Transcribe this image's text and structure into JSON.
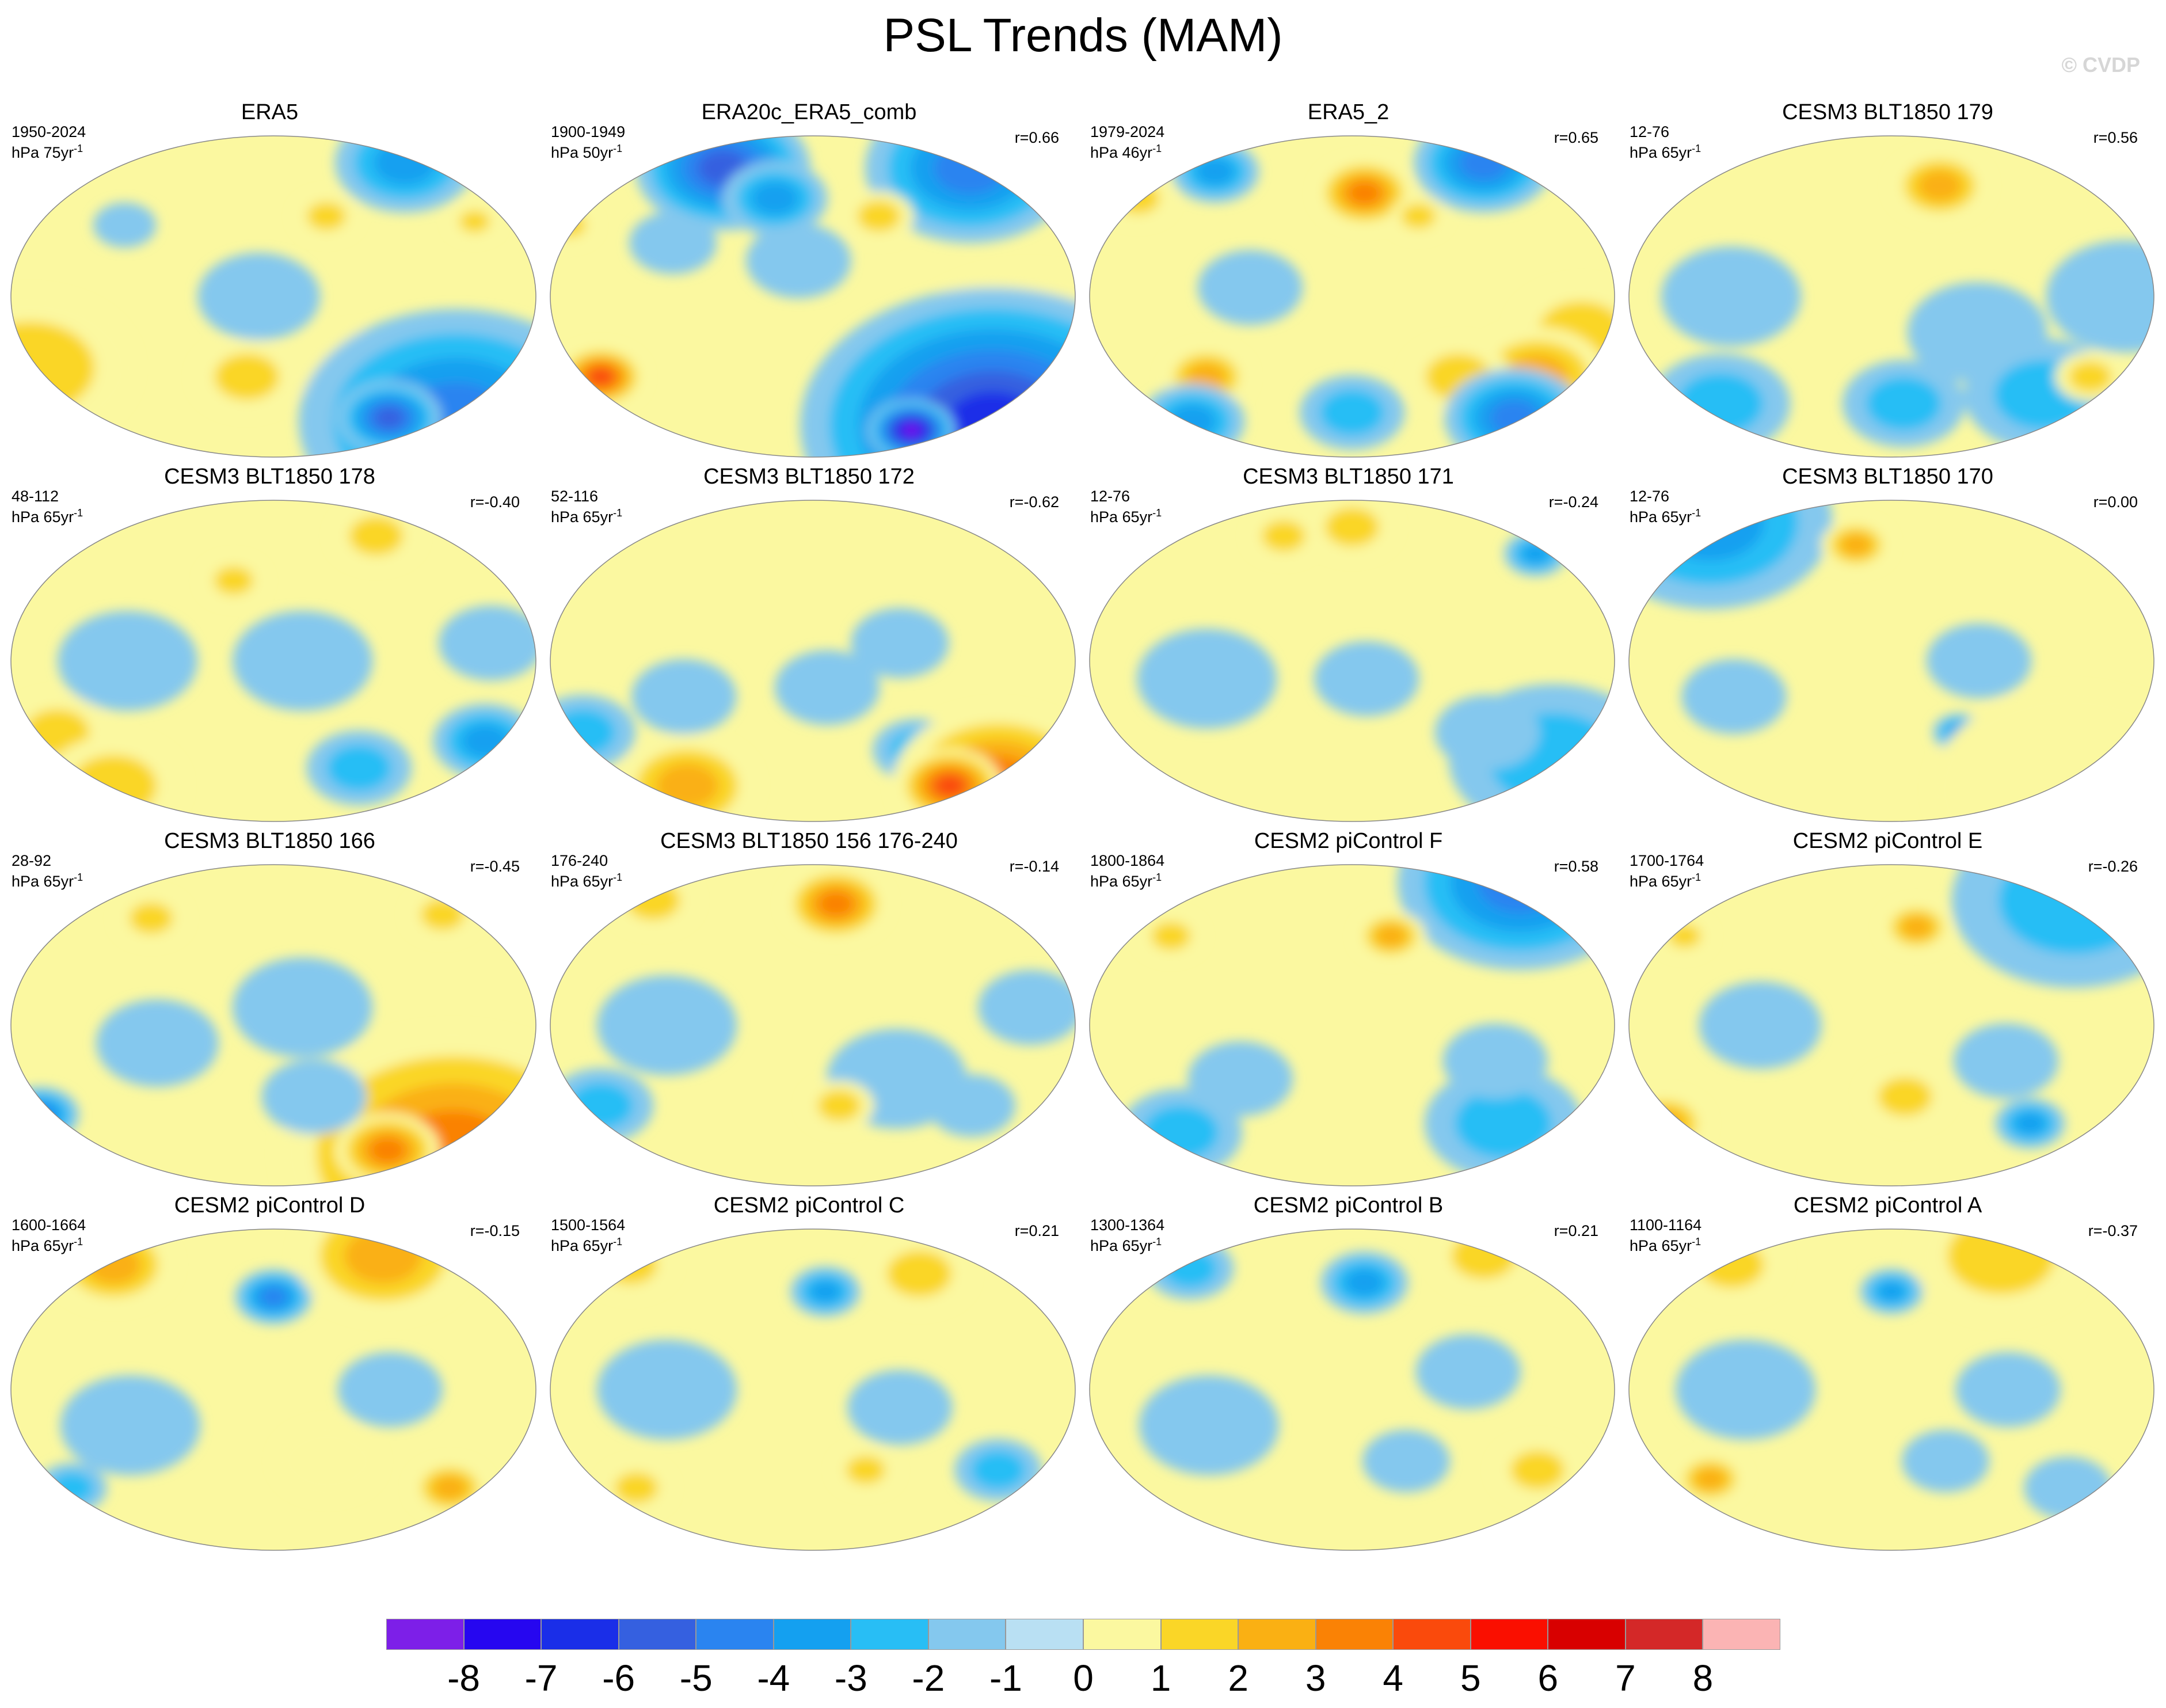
{
  "title": "PSL Trends (MAM)",
  "watermark": "© CVDP",
  "units_suffix": "yr",
  "units_exponent": "-1",
  "colorbar": {
    "colors": [
      "#7d1fe8",
      "#2606f0",
      "#1a2ee8",
      "#3560e0",
      "#2a84f0",
      "#14a0f0",
      "#28bef5",
      "#84c8ee",
      "#b9e0f3",
      "#fbf8a0",
      "#fad627",
      "#fab013",
      "#fa8205",
      "#fa4a0c",
      "#fa0f00",
      "#d80000",
      "#d42828",
      "#fbb4b4"
    ],
    "labels": [
      "-8",
      "-7",
      "-6",
      "-5",
      "-4",
      "-3",
      "-2",
      "-1",
      "0",
      "1",
      "2",
      "3",
      "4",
      "5",
      "6",
      "7",
      "8"
    ]
  },
  "panels": [
    {
      "title": "ERA5",
      "years": "1950-2024",
      "units": "hPa 75",
      "corr": "",
      "blobs": [
        {
          "lon": -120,
          "lat": 45,
          "r": 18,
          "v": 2
        },
        {
          "lon": -10,
          "lat": 42,
          "r": 14,
          "v": 2
        },
        {
          "lon": 90,
          "lat": 40,
          "r": 18,
          "v": -1
        },
        {
          "lon": 20,
          "lat": -40,
          "r": 60,
          "v": 2
        },
        {
          "lon": -90,
          "lat": -45,
          "r": 40,
          "v": 2
        },
        {
          "lon": -180,
          "lat": -45,
          "r": 30,
          "v": 2
        },
        {
          "lon": 0,
          "lat": -70,
          "r": 90,
          "v": -4
        },
        {
          "lon": -60,
          "lat": -68,
          "r": 30,
          "v": -5
        },
        {
          "lon": -170,
          "lat": 0,
          "r": 35,
          "v": -1
        },
        {
          "lon": -40,
          "lat": 75,
          "r": 40,
          "v": -3
        }
      ]
    },
    {
      "title": "ERA20c_ERA5_comb",
      "years": "1900-1949",
      "units": "hPa 50",
      "corr": "r=0.66",
      "blobs": [
        {
          "lon": -20,
          "lat": 72,
          "r": 60,
          "v": -4
        },
        {
          "lon": 120,
          "lat": 72,
          "r": 50,
          "v": -5
        },
        {
          "lon": 170,
          "lat": 55,
          "r": 30,
          "v": -3
        },
        {
          "lon": -110,
          "lat": 45,
          "r": 20,
          "v": 2
        },
        {
          "lon": 20,
          "lat": 40,
          "r": 15,
          "v": 2
        },
        {
          "lon": 0,
          "lat": -40,
          "r": 80,
          "v": 3
        },
        {
          "lon": -40,
          "lat": -45,
          "r": 30,
          "v": 5
        },
        {
          "lon": 40,
          "lat": -45,
          "r": 25,
          "v": 5
        },
        {
          "lon": 0,
          "lat": -72,
          "r": 110,
          "v": -6
        },
        {
          "lon": -70,
          "lat": -75,
          "r": 25,
          "v": -8
        },
        {
          "lon": 100,
          "lat": 30,
          "r": 25,
          "v": -1
        },
        {
          "lon": -170,
          "lat": 20,
          "r": 30,
          "v": -1
        }
      ]
    },
    {
      "title": "ERA5_2",
      "years": "1979-2024",
      "units": "hPa 46",
      "corr": "r=0.65",
      "blobs": [
        {
          "lon": -40,
          "lat": 75,
          "r": 40,
          "v": -4
        },
        {
          "lon": 80,
          "lat": 70,
          "r": 25,
          "v": -3
        },
        {
          "lon": -150,
          "lat": 58,
          "r": 28,
          "v": 4
        },
        {
          "lon": 30,
          "lat": 55,
          "r": 20,
          "v": 2
        },
        {
          "lon": -110,
          "lat": 45,
          "r": 16,
          "v": 2
        },
        {
          "lon": 0,
          "lat": -20,
          "r": 40,
          "v": 2
        },
        {
          "lon": -20,
          "lat": -45,
          "r": 40,
          "v": 3
        },
        {
          "lon": -80,
          "lat": -45,
          "r": 30,
          "v": 2
        },
        {
          "lon": 90,
          "lat": -45,
          "r": 25,
          "v": 3
        },
        {
          "lon": -20,
          "lat": -68,
          "r": 40,
          "v": -4
        },
        {
          "lon": 60,
          "lat": -70,
          "r": 30,
          "v": -3
        },
        {
          "lon": -160,
          "lat": -65,
          "r": 30,
          "v": -2
        },
        {
          "lon": 130,
          "lat": 5,
          "r": 30,
          "v": -1
        }
      ]
    },
    {
      "title": "CESM3 BLT1850 179",
      "years": "12-76",
      "units": "hPa 65",
      "corr": "r=0.56",
      "blobs": [
        {
          "lon": -120,
          "lat": 62,
          "r": 28,
          "v": 3
        },
        {
          "lon": 0,
          "lat": 0,
          "r": 45,
          "v": -1
        },
        {
          "lon": -100,
          "lat": -20,
          "r": 40,
          "v": -1
        },
        {
          "lon": 90,
          "lat": 0,
          "r": 40,
          "v": -1
        },
        {
          "lon": -40,
          "lat": -55,
          "r": 45,
          "v": -2
        },
        {
          "lon": 60,
          "lat": -60,
          "r": 40,
          "v": -2
        },
        {
          "lon": -150,
          "lat": -60,
          "r": 35,
          "v": -2
        },
        {
          "lon": -10,
          "lat": -45,
          "r": 20,
          "v": 2
        }
      ]
    },
    {
      "title": "CESM3 BLT1850 178",
      "years": "48-112",
      "units": "hPa 65",
      "corr": "r=-0.40",
      "blobs": [
        {
          "lon": 170,
          "lat": 45,
          "r": 18,
          "v": 2
        },
        {
          "lon": -70,
          "lat": 70,
          "r": 25,
          "v": 2
        },
        {
          "lon": 0,
          "lat": -45,
          "r": 30,
          "v": -3
        },
        {
          "lon": -90,
          "lat": -60,
          "r": 30,
          "v": -2
        },
        {
          "lon": 40,
          "lat": -40,
          "r": 30,
          "v": 2
        },
        {
          "lon": 60,
          "lat": -70,
          "r": 40,
          "v": 2
        },
        {
          "lon": -140,
          "lat": 0,
          "r": 40,
          "v": -1
        },
        {
          "lon": 100,
          "lat": 0,
          "r": 40,
          "v": -1
        },
        {
          "lon": -10,
          "lat": 10,
          "r": 30,
          "v": -1
        }
      ]
    },
    {
      "title": "CESM3 BLT1850 172",
      "years": "52-116",
      "units": "hPa 65",
      "corr": "r=-0.62",
      "blobs": [
        {
          "lon": -100,
          "lat": 10,
          "r": 28,
          "v": -1
        },
        {
          "lon": 30,
          "lat": -40,
          "r": 30,
          "v": -2
        },
        {
          "lon": -80,
          "lat": -50,
          "r": 25,
          "v": -2
        },
        {
          "lon": 0,
          "lat": -68,
          "r": 60,
          "v": 4
        },
        {
          "lon": -40,
          "lat": -70,
          "r": 30,
          "v": 5
        },
        {
          "lon": 90,
          "lat": -70,
          "r": 40,
          "v": 3
        },
        {
          "lon": -150,
          "lat": -15,
          "r": 30,
          "v": -1
        },
        {
          "lon": 110,
          "lat": -20,
          "r": 30,
          "v": -1
        }
      ]
    },
    {
      "title": "CESM3 BLT1850 171",
      "years": "12-76",
      "units": "hPa 65",
      "corr": "r=-0.24",
      "blobs": [
        {
          "lon": -10,
          "lat": 60,
          "r": 18,
          "v": -3
        },
        {
          "lon": -160,
          "lat": 75,
          "r": 25,
          "v": 2
        },
        {
          "lon": 140,
          "lat": 70,
          "r": 20,
          "v": 2
        },
        {
          "lon": 0,
          "lat": -55,
          "r": 60,
          "v": -2
        },
        {
          "lon": -60,
          "lat": -40,
          "r": 30,
          "v": -1
        },
        {
          "lon": 100,
          "lat": -10,
          "r": 40,
          "v": -1
        },
        {
          "lon": -150,
          "lat": -10,
          "r": 30,
          "v": -1
        }
      ]
    },
    {
      "title": "CESM3 BLT1850 170",
      "years": "12-76",
      "units": "hPa 65",
      "corr": "r=0.00",
      "blobs": [
        {
          "lon": 30,
          "lat": 78,
          "r": 70,
          "v": -3
        },
        {
          "lon": 170,
          "lat": 65,
          "r": 20,
          "v": 3
        },
        {
          "lon": -20,
          "lat": -45,
          "r": 30,
          "v": 2
        },
        {
          "lon": -110,
          "lat": -40,
          "r": 15,
          "v": -3
        },
        {
          "lon": -100,
          "lat": 0,
          "r": 30,
          "v": -1
        },
        {
          "lon": 90,
          "lat": -20,
          "r": 30,
          "v": -1
        },
        {
          "lon": 0,
          "lat": -72,
          "r": 80,
          "v": 1
        }
      ]
    },
    {
      "title": "CESM3 BLT1850 166",
      "years": "28-92",
      "units": "hPa 65",
      "corr": "r=-0.45",
      "blobs": [
        {
          "lon": -20,
          "lat": 62,
          "r": 20,
          "v": 2
        },
        {
          "lon": 100,
          "lat": 60,
          "r": 20,
          "v": 2
        },
        {
          "lon": 20,
          "lat": -50,
          "r": 22,
          "v": -4
        },
        {
          "lon": 0,
          "lat": -72,
          "r": 100,
          "v": 4
        },
        {
          "lon": -60,
          "lat": -70,
          "r": 30,
          "v": 4
        },
        {
          "lon": -130,
          "lat": -40,
          "r": 30,
          "v": -1
        },
        {
          "lon": 120,
          "lat": -10,
          "r": 35,
          "v": -1
        },
        {
          "lon": -140,
          "lat": 10,
          "r": 40,
          "v": -1
        }
      ]
    },
    {
      "title": "CESM3 BLT1850 156 176-240",
      "years": "176-240",
      "units": "hPa 65",
      "corr": "r=-0.14",
      "blobs": [
        {
          "lon": -140,
          "lat": 68,
          "r": 30,
          "v": 4
        },
        {
          "lon": 60,
          "lat": 70,
          "r": 25,
          "v": 2
        },
        {
          "lon": -100,
          "lat": -30,
          "r": 40,
          "v": -1
        },
        {
          "lon": 40,
          "lat": -45,
          "r": 30,
          "v": -2
        },
        {
          "lon": -40,
          "lat": -45,
          "r": 25,
          "v": -1
        },
        {
          "lon": -140,
          "lat": -45,
          "r": 20,
          "v": 2
        },
        {
          "lon": 100,
          "lat": 0,
          "r": 40,
          "v": -1
        },
        {
          "lon": -10,
          "lat": 10,
          "r": 30,
          "v": -1
        }
      ]
    },
    {
      "title": "CESM2 piControl F",
      "years": "1800-1864",
      "units": "hPa 65",
      "corr": "r=0.58",
      "blobs": [
        {
          "lon": 0,
          "lat": 80,
          "r": 70,
          "v": -4
        },
        {
          "lon": -130,
          "lat": 50,
          "r": 20,
          "v": 3
        },
        {
          "lon": 60,
          "lat": 50,
          "r": 18,
          "v": 2
        },
        {
          "lon": -40,
          "lat": -55,
          "r": 45,
          "v": -2
        },
        {
          "lon": 60,
          "lat": -60,
          "r": 35,
          "v": -2
        },
        {
          "lon": -60,
          "lat": -20,
          "r": 30,
          "v": -1
        },
        {
          "lon": 120,
          "lat": -30,
          "r": 30,
          "v": -1
        }
      ]
    },
    {
      "title": "CESM2 piControl E",
      "years": "1700-1764",
      "units": "hPa 65",
      "corr": "r=-0.26",
      "blobs": [
        {
          "lon": 0,
          "lat": 70,
          "r": 70,
          "v": -2
        },
        {
          "lon": -140,
          "lat": 55,
          "r": 20,
          "v": 3
        },
        {
          "lon": 40,
          "lat": 50,
          "r": 15,
          "v": 2
        },
        {
          "lon": 20,
          "lat": -55,
          "r": 25,
          "v": 3
        },
        {
          "lon": -50,
          "lat": -55,
          "r": 20,
          "v": -3
        },
        {
          "lon": -150,
          "lat": -40,
          "r": 25,
          "v": 2
        },
        {
          "lon": 110,
          "lat": 0,
          "r": 35,
          "v": -1
        },
        {
          "lon": -80,
          "lat": -20,
          "r": 30,
          "v": -1
        }
      ]
    },
    {
      "title": "CESM2 piControl D",
      "years": "1600-1664",
      "units": "hPa 65",
      "corr": "r=-0.15",
      "blobs": [
        {
          "lon": -160,
          "lat": 52,
          "r": 22,
          "v": -4
        },
        {
          "lon": -60,
          "lat": 75,
          "r": 50,
          "v": 3
        },
        {
          "lon": 60,
          "lat": 70,
          "r": 35,
          "v": 3
        },
        {
          "lon": -20,
          "lat": -55,
          "r": 22,
          "v": 3
        },
        {
          "lon": 40,
          "lat": -55,
          "r": 20,
          "v": -2
        },
        {
          "lon": -120,
          "lat": -40,
          "r": 30,
          "v": 1
        },
        {
          "lon": 100,
          "lat": -20,
          "r": 40,
          "v": -1
        },
        {
          "lon": -80,
          "lat": 0,
          "r": 30,
          "v": -1
        }
      ]
    },
    {
      "title": "CESM2 piControl C",
      "years": "1500-1564",
      "units": "hPa 65",
      "corr": "r=0.21",
      "blobs": [
        {
          "lon": -150,
          "lat": 55,
          "r": 20,
          "v": -3
        },
        {
          "lon": -70,
          "lat": 65,
          "r": 30,
          "v": 2
        },
        {
          "lon": 40,
          "lat": 70,
          "r": 25,
          "v": 2
        },
        {
          "lon": -20,
          "lat": -45,
          "r": 25,
          "v": -2
        },
        {
          "lon": -120,
          "lat": -45,
          "r": 18,
          "v": 2
        },
        {
          "lon": 60,
          "lat": -55,
          "r": 20,
          "v": 2
        },
        {
          "lon": 100,
          "lat": 0,
          "r": 40,
          "v": -1
        },
        {
          "lon": -100,
          "lat": -10,
          "r": 30,
          "v": -1
        }
      ]
    },
    {
      "title": "CESM2 piControl B",
      "years": "1300-1364",
      "units": "hPa 65",
      "corr": "r=0.21",
      "blobs": [
        {
          "lon": -150,
          "lat": 60,
          "r": 25,
          "v": -3
        },
        {
          "lon": 60,
          "lat": 68,
          "r": 25,
          "v": -2
        },
        {
          "lon": -40,
          "lat": 75,
          "r": 30,
          "v": 2
        },
        {
          "lon": -20,
          "lat": -45,
          "r": 25,
          "v": 2
        },
        {
          "lon": -120,
          "lat": -40,
          "r": 25,
          "v": -1
        },
        {
          "lon": 100,
          "lat": -20,
          "r": 40,
          "v": -1
        },
        {
          "lon": -80,
          "lat": 10,
          "r": 30,
          "v": -1
        }
      ]
    },
    {
      "title": "CESM2 piControl A",
      "years": "1100-1164",
      "units": "hPa 65",
      "corr": "r=-0.37",
      "blobs": [
        {
          "lon": -160,
          "lat": 55,
          "r": 18,
          "v": -3
        },
        {
          "lon": -60,
          "lat": 75,
          "r": 50,
          "v": 2
        },
        {
          "lon": 60,
          "lat": 70,
          "r": 30,
          "v": 2
        },
        {
          "lon": 60,
          "lat": -50,
          "r": 20,
          "v": 3
        },
        {
          "lon": -20,
          "lat": -55,
          "r": 25,
          "v": -1
        },
        {
          "lon": -120,
          "lat": -40,
          "r": 25,
          "v": -1
        },
        {
          "lon": 100,
          "lat": 0,
          "r": 40,
          "v": -1
        },
        {
          "lon": -80,
          "lat": 0,
          "r": 30,
          "v": -1
        }
      ]
    }
  ]
}
